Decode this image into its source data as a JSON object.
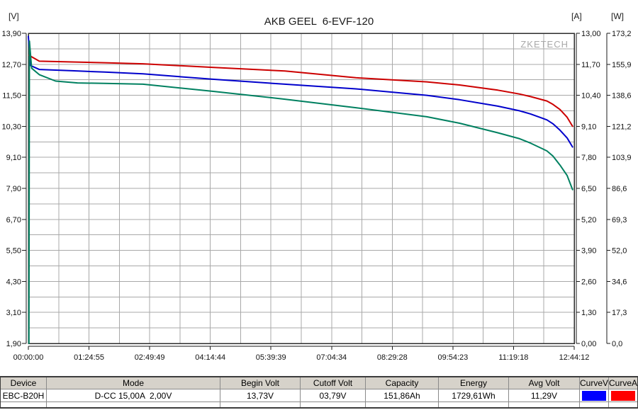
{
  "chart_data": {
    "type": "line",
    "title": "AKB GEEL  6-EVF-120",
    "watermark": "ZKETECH",
    "x_axis": {
      "total_duration": "12:44:12",
      "x_unit": "fraction_of_total_duration",
      "labels": [
        "00:00:00",
        "01:24:55",
        "02:49:49",
        "04:14:44",
        "05:39:39",
        "07:04:34",
        "08:29:28",
        "09:54:23",
        "11:19:18",
        "12:44:12"
      ],
      "minor_divisions": 18
    },
    "y_axes": {
      "voltage": {
        "unit": "[V]",
        "max": 13.9,
        "min": 1.9,
        "ticks": [
          "13,90",
          "12,70",
          "11,50",
          "10,30",
          "9,10",
          "7,90",
          "6,70",
          "5,50",
          "4,30",
          "3,10",
          "1,90"
        ]
      },
      "current": {
        "unit": "[A]",
        "max": 13.0,
        "min": 0.0,
        "ticks": [
          "13,00",
          "11,70",
          "10,40",
          "9,10",
          "7,80",
          "6,50",
          "5,20",
          "3,90",
          "2,60",
          "1,30",
          "0,00"
        ]
      },
      "power": {
        "unit": "[W]",
        "max": 173.2,
        "min": 0.0,
        "ticks": [
          "173,2",
          "155,9",
          "138,6",
          "121,2",
          "103,9",
          "86,6",
          "69,3",
          "52,0",
          "34,6",
          "17,3",
          "0,0"
        ]
      }
    },
    "grid": true,
    "minor_y_divisions": 20,
    "series": [
      {
        "name": "curve-red",
        "color": "#cc0000",
        "axis": "voltage",
        "points": [
          [
            0.001,
            13.05
          ],
          [
            0.02,
            12.82
          ],
          [
            0.08,
            12.79
          ],
          [
            0.14,
            12.76
          ],
          [
            0.21,
            12.72
          ],
          [
            0.34,
            12.58
          ],
          [
            0.47,
            12.44
          ],
          [
            0.6,
            12.18
          ],
          [
            0.73,
            12.02
          ],
          [
            0.79,
            11.9
          ],
          [
            0.86,
            11.7
          ],
          [
            0.9,
            11.55
          ],
          [
            0.92,
            11.45
          ],
          [
            0.95,
            11.28
          ],
          [
            0.961,
            11.15
          ],
          [
            0.974,
            10.95
          ],
          [
            0.987,
            10.65
          ],
          [
            0.997,
            10.3
          ]
        ]
      },
      {
        "name": "curve-blue",
        "color": "#0000cc",
        "axis": "voltage",
        "points": [
          [
            0.0,
            13.78
          ],
          [
            0.004,
            12.65
          ],
          [
            0.02,
            12.5
          ],
          [
            0.08,
            12.45
          ],
          [
            0.14,
            12.4
          ],
          [
            0.21,
            12.33
          ],
          [
            0.34,
            12.12
          ],
          [
            0.47,
            11.93
          ],
          [
            0.6,
            11.75
          ],
          [
            0.73,
            11.5
          ],
          [
            0.79,
            11.33
          ],
          [
            0.86,
            11.08
          ],
          [
            0.9,
            10.9
          ],
          [
            0.92,
            10.78
          ],
          [
            0.95,
            10.55
          ],
          [
            0.961,
            10.4
          ],
          [
            0.974,
            10.15
          ],
          [
            0.987,
            9.85
          ],
          [
            0.997,
            9.5
          ]
        ]
      },
      {
        "name": "curve-teal",
        "color": "#008060",
        "axis": "voltage",
        "points": [
          [
            0.001,
            1.9
          ],
          [
            0.002,
            13.6
          ],
          [
            0.006,
            12.55
          ],
          [
            0.02,
            12.3
          ],
          [
            0.05,
            12.05
          ],
          [
            0.09,
            11.98
          ],
          [
            0.14,
            11.96
          ],
          [
            0.21,
            11.93
          ],
          [
            0.34,
            11.65
          ],
          [
            0.47,
            11.35
          ],
          [
            0.6,
            11.02
          ],
          [
            0.73,
            10.67
          ],
          [
            0.79,
            10.42
          ],
          [
            0.86,
            10.05
          ],
          [
            0.9,
            9.82
          ],
          [
            0.92,
            9.65
          ],
          [
            0.95,
            9.35
          ],
          [
            0.961,
            9.15
          ],
          [
            0.974,
            8.8
          ],
          [
            0.987,
            8.4
          ],
          [
            0.997,
            7.85
          ]
        ]
      }
    ]
  },
  "table": {
    "columns": [
      "Device",
      "Mode",
      "Begin Volt",
      "Cutoff Volt",
      "Capacity",
      "Energy",
      "Avg Volt",
      "CurveV",
      "CurveA"
    ],
    "row": {
      "device": "EBC-B20H",
      "mode": "D-CC 15,00A  2,00V",
      "begin_volt": "13,73V",
      "cutoff_volt": "03,79V",
      "capacity": "151,86Ah",
      "energy": "1729,61Wh",
      "avg_volt": "11,29V",
      "curve_v_color": "#0000ff",
      "curve_a_color": "#ff0000"
    }
  }
}
